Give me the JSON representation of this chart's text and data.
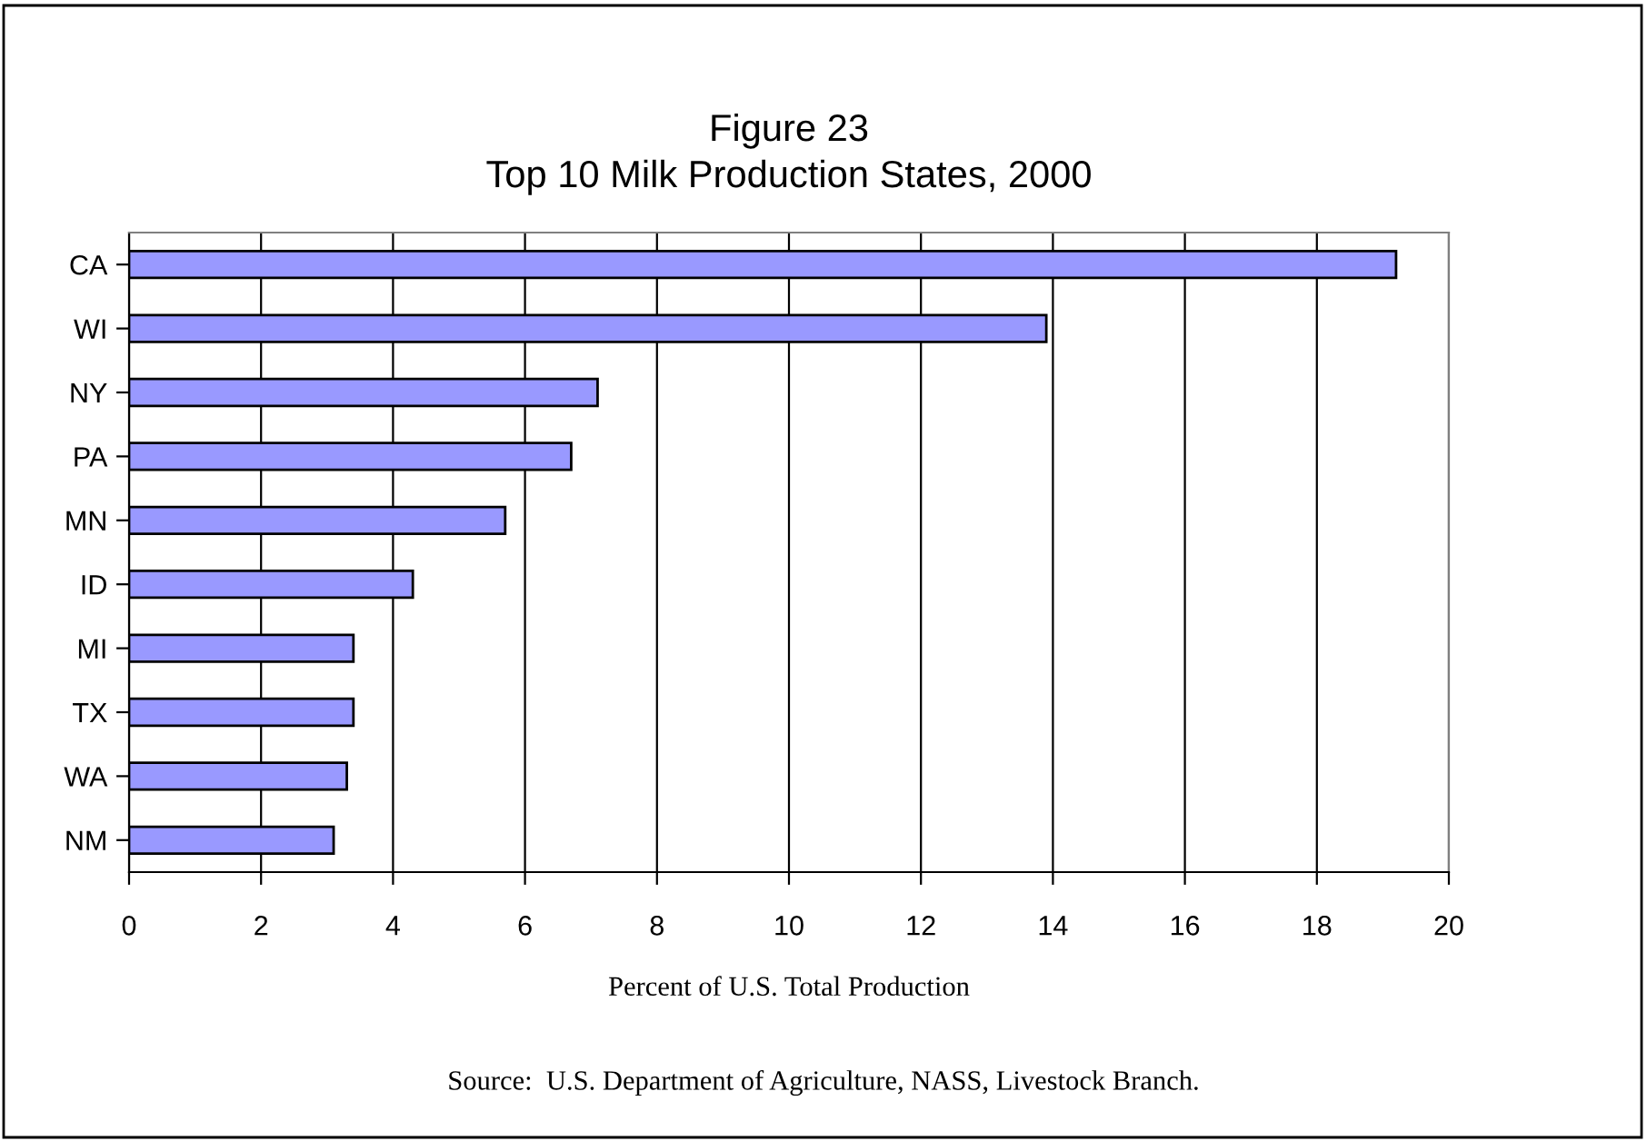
{
  "chart_data": {
    "type": "bar",
    "orientation": "horizontal",
    "title": "Figure 23\nTop 10 Milk Production States, 2000",
    "categories": [
      "CA",
      "WI",
      "NY",
      "PA",
      "MN",
      "ID",
      "MI",
      "TX",
      "WA",
      "NM"
    ],
    "values": [
      19.2,
      13.9,
      7.1,
      6.7,
      5.7,
      4.3,
      3.4,
      3.4,
      3.3,
      3.1
    ],
    "color": "#9999ff",
    "xlim": [
      0,
      20
    ],
    "xticks": [
      0,
      2,
      4,
      6,
      8,
      10,
      12,
      14,
      16,
      18,
      20
    ],
    "xlabel": "Percent of U.S. Total Production",
    "grid": "x",
    "annotations": [
      "Source:  U.S. Department of Agriculture, NASS, Livestock Branch."
    ]
  }
}
